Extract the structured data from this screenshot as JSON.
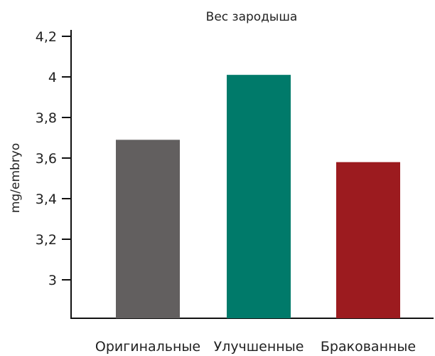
{
  "chart_data": {
    "type": "bar",
    "title": "Вес зародыша",
    "xlabel": "",
    "ylabel": "mg/embryo",
    "categories": [
      "Оригинальные",
      "Улучшенные",
      "Бракованные"
    ],
    "values": [
      3.69,
      4.01,
      3.58
    ],
    "colors": [
      "#625f5f",
      "#007a6a",
      "#9c1b1f"
    ],
    "ylim": [
      2.8,
      4.2
    ],
    "yticks": [
      3,
      3.2,
      3.4,
      3.6,
      3.8,
      4,
      4.2
    ],
    "ytick_labels": [
      "3",
      "3,2",
      "3,4",
      "3,6",
      "3,8",
      "4",
      "4,2"
    ],
    "grid": false,
    "legend": "none"
  }
}
